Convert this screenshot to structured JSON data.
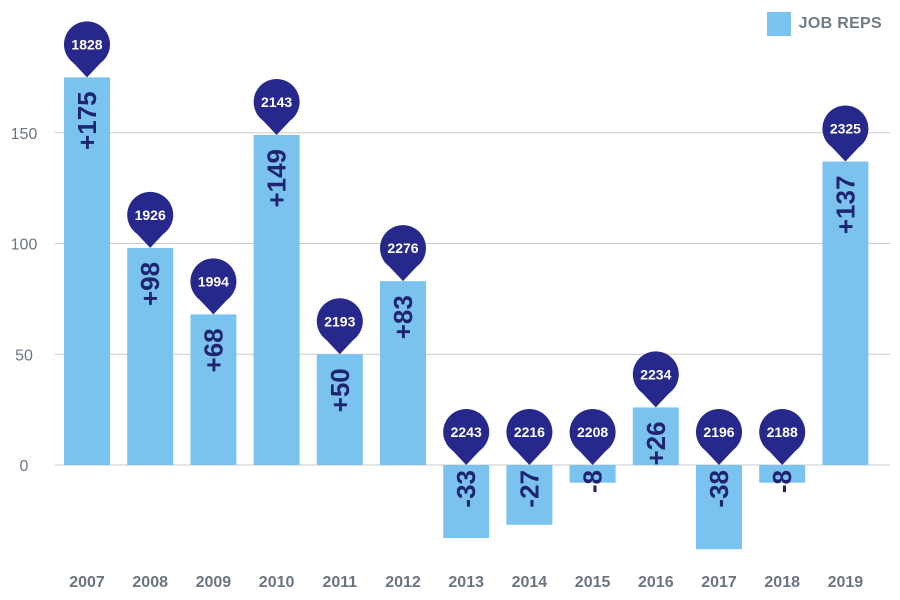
{
  "chart_data": {
    "type": "bar",
    "categories": [
      "2007",
      "2008",
      "2009",
      "2010",
      "2011",
      "2012",
      "2013",
      "2014",
      "2015",
      "2016",
      "2017",
      "2018",
      "2019"
    ],
    "series": [
      {
        "name": "JOB REPS",
        "values": [
          175,
          98,
          68,
          149,
          50,
          83,
          -33,
          -27,
          -8,
          26,
          -38,
          -8,
          137
        ],
        "value_labels": [
          "+175",
          "+98",
          "+68",
          "+149",
          "+50",
          "+83",
          "-33",
          "-27",
          "-8",
          "+26",
          "-38",
          "-8",
          "+137"
        ]
      }
    ],
    "totals": [
      1828,
      1926,
      1994,
      2143,
      2193,
      2276,
      2243,
      2216,
      2208,
      2234,
      2196,
      2188,
      2325
    ],
    "yticks": [
      0,
      50,
      100,
      150
    ],
    "ylim": [
      -42,
      196
    ],
    "grid": true,
    "legend": "top-right",
    "colors": {
      "bar": "#7ac3ee",
      "marker": "#27288c",
      "label": "#1f2370",
      "grid": "#c9c9c9",
      "axis_text": "#6b7580"
    }
  }
}
